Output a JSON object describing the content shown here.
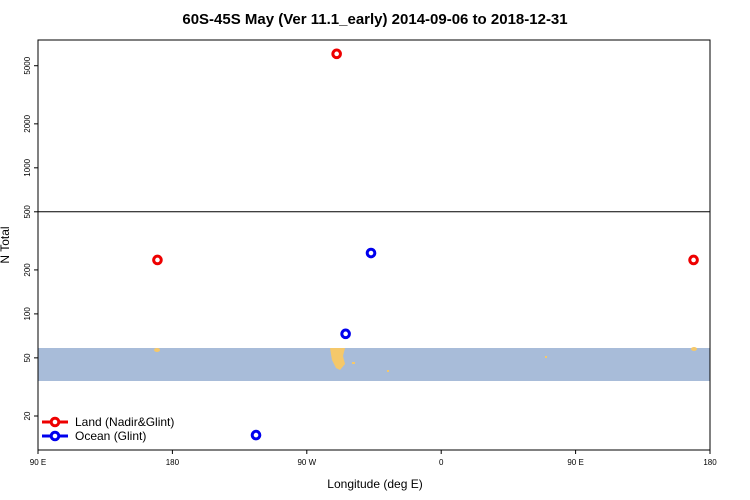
{
  "chart_data": {
    "type": "scatter",
    "title": "60S-45S May (Ver 11.1_early)   2014-09-06 to 2018-12-31",
    "xlabel": "Longitude (deg E)",
    "ylabel": "N Total",
    "log_y": true,
    "legend": "bottom-left",
    "xlim": [
      90,
      540
    ],
    "xticks": [
      {
        "value": 90,
        "label": "90 E"
      },
      180,
      {
        "value": 270,
        "label": "90 W"
      },
      {
        "value": 360,
        "label": "0"
      },
      {
        "value": 450,
        "label": "90 E"
      },
      {
        "value": 540,
        "label": "180"
      }
    ],
    "ylim": [
      11.7,
      7500
    ],
    "yticks": [
      20,
      50,
      100,
      200,
      500,
      1000,
      2000,
      5000
    ],
    "hline": 500,
    "series": [
      {
        "name": "Land (Nadir&Glint)",
        "color": "#ee0000",
        "x": [
          290,
          170,
          529
        ],
        "values": [
          6030,
          234,
          234
        ]
      },
      {
        "name": "Ocean (Glint)",
        "color": "#0000ee",
        "x": [
          313,
          296,
          236
        ],
        "values": [
          261,
          73,
          14.8
        ]
      }
    ]
  }
}
